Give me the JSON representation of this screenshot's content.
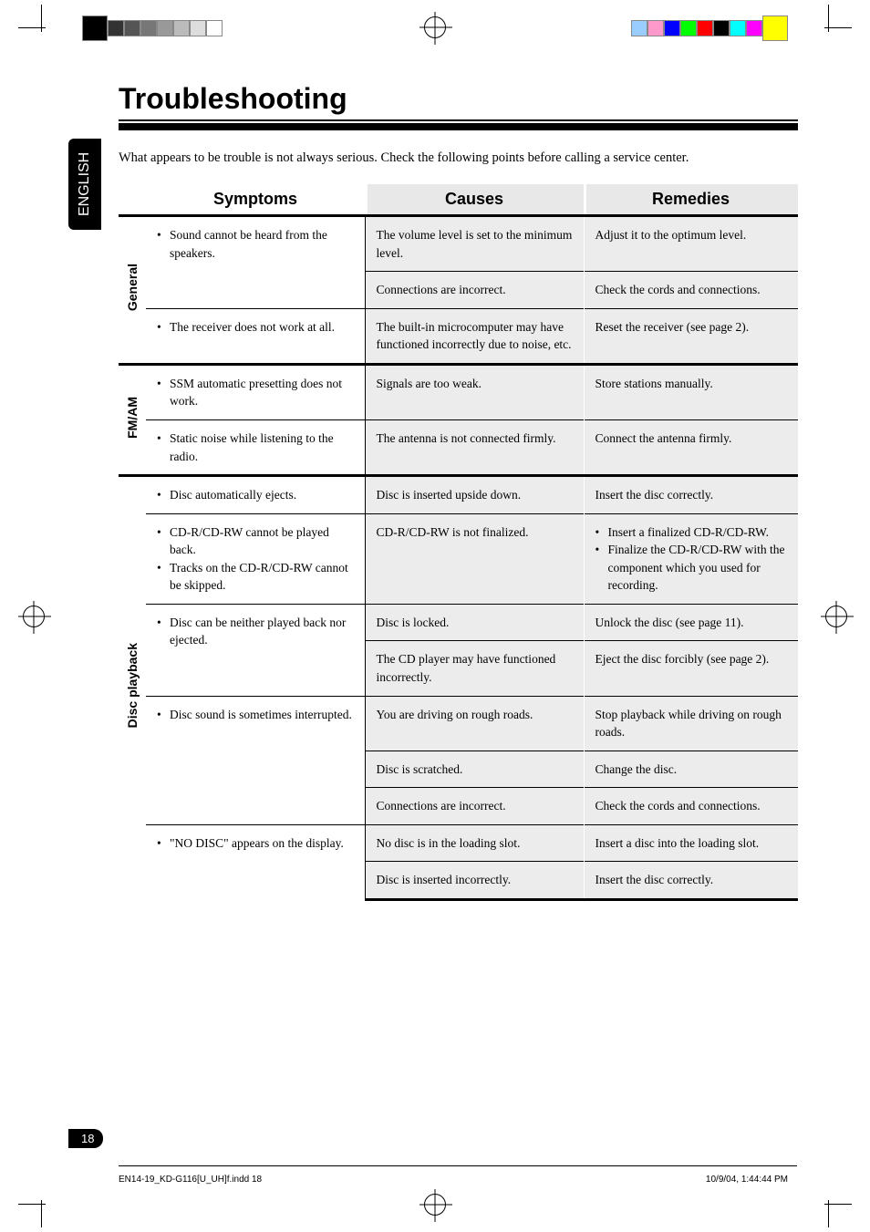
{
  "lang_tab": "ENGLISH",
  "title": "Troubleshooting",
  "intro": "What appears to be trouble is not always serious. Check the following points before calling a service center.",
  "headers": {
    "symptoms": "Symptoms",
    "causes": "Causes",
    "remedies": "Remedies"
  },
  "categories": [
    {
      "label": "General",
      "rows": [
        {
          "sym": [
            "Sound cannot be heard from the speakers."
          ],
          "sym_rs": 2,
          "cau": "The volume level is set to the minimum level.",
          "rem": "Adjust it to the optimum level."
        },
        {
          "cau": "Connections are incorrect.",
          "rem": "Check the cords and connections."
        },
        {
          "sym": [
            "The receiver does not work at all."
          ],
          "sym_rs": 1,
          "cau": "The built-in microcomputer may have functioned incorrectly due to noise, etc.",
          "rem": "Reset the receiver (see page 2)."
        }
      ]
    },
    {
      "label": "FM/AM",
      "rows": [
        {
          "sym": [
            "SSM automatic presetting does not work."
          ],
          "sym_rs": 1,
          "cau": "Signals are too weak.",
          "rem": "Store stations manually."
        },
        {
          "sym": [
            "Static noise while listening to the radio."
          ],
          "sym_rs": 1,
          "cau": "The antenna is not connected firmly.",
          "rem": "Connect the antenna firmly."
        }
      ]
    },
    {
      "label": "Disc playback",
      "rows": [
        {
          "sym": [
            "Disc automatically ejects."
          ],
          "sym_rs": 1,
          "cau": "Disc is inserted upside down.",
          "rem": "Insert the disc correctly."
        },
        {
          "sym": [
            "CD-R/CD-RW cannot be played back.",
            "Tracks on the CD-R/CD-RW cannot be skipped."
          ],
          "sym_rs": 1,
          "cau": "CD-R/CD-RW is not finalized.",
          "rem_list": [
            "Insert a finalized CD-R/CD-RW.",
            "Finalize the CD-R/CD-RW with the component which you used for recording."
          ]
        },
        {
          "sym": [
            "Disc can be neither played back nor ejected."
          ],
          "sym_rs": 2,
          "cau": "Disc is locked.",
          "rem": "Unlock the disc (see page 11)."
        },
        {
          "cau": "The CD player may have functioned incorrectly.",
          "rem": "Eject the disc forcibly (see page 2)."
        },
        {
          "sym": [
            "Disc sound is sometimes interrupted."
          ],
          "sym_rs": 3,
          "cau": "You are driving on rough roads.",
          "rem": "Stop playback while driving on rough roads."
        },
        {
          "cau": "Disc is scratched.",
          "rem": "Change the disc."
        },
        {
          "cau": "Connections are incorrect.",
          "rem": "Check the cords and connections."
        },
        {
          "sym": [
            "\"NO DISC\" appears on the display."
          ],
          "sym_rs": 2,
          "cau": "No disc is in the loading slot.",
          "rem": "Insert a disc into the loading slot."
        },
        {
          "cau": "Disc is inserted incorrectly.",
          "rem": "Insert the disc correctly."
        }
      ]
    }
  ],
  "page_number": "18",
  "footer": {
    "file": "EN14-19_KD-G116[U_UH]f.indd   18",
    "timestamp": "10/9/04, 1:44:44 PM"
  },
  "print_colors": {
    "grays": [
      "#000000",
      "#333333",
      "#555555",
      "#777777",
      "#999999",
      "#bbbbbb",
      "#dddddd",
      "#ffffff"
    ],
    "cmyk_left": [
      "#888888",
      "#bbbbbb",
      "#ffffff"
    ],
    "process_right": [
      "#ffff00",
      "#ff00ff",
      "#00ffff",
      "#000000",
      "#ff0000",
      "#00ff00",
      "#0000ff",
      "#ff99cc",
      "#99ccff"
    ]
  }
}
